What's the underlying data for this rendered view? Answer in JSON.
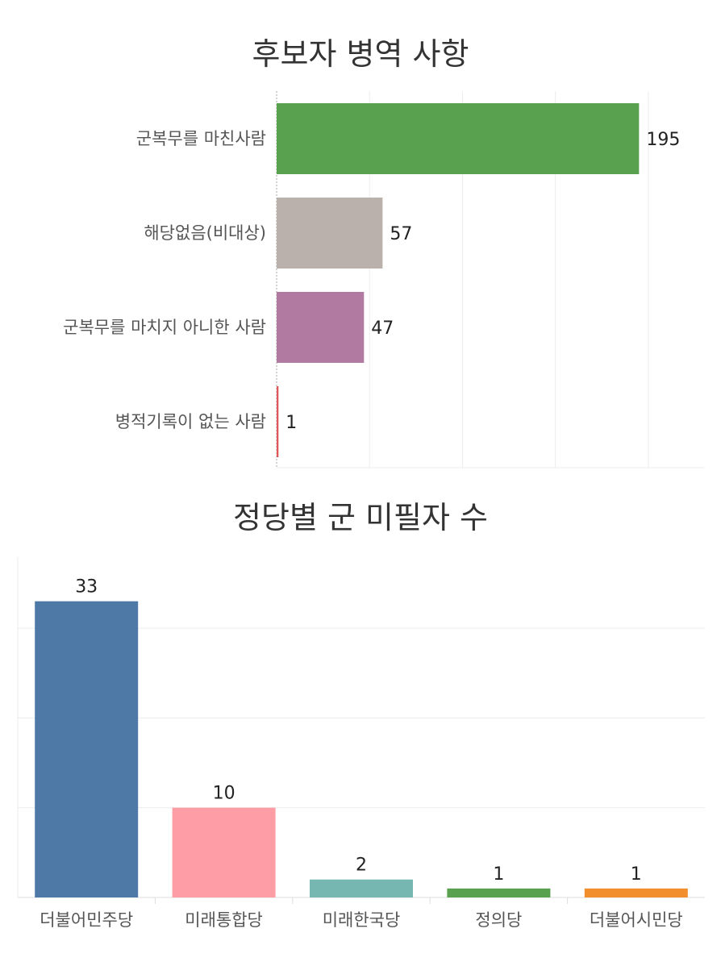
{
  "chart_data": [
    {
      "type": "bar",
      "orientation": "horizontal",
      "title": "후보자 병역 사항",
      "categories": [
        "군복무를 마친사람",
        "해당없음(비대상)",
        "군복무를 마치지 아니한 사람",
        "병적기록이 없는 사람"
      ],
      "values": [
        195,
        57,
        47,
        1
      ],
      "colors": [
        "#59a14f",
        "#bab0ac",
        "#b07aa1",
        "#e15759"
      ],
      "xlim": [
        0,
        230
      ],
      "grid": true,
      "legend": "none"
    },
    {
      "type": "bar",
      "orientation": "vertical",
      "title": "정당별 군 미필자 수",
      "categories": [
        "더불어민주당",
        "미래통합당",
        "미래한국당",
        "정의당",
        "더불어시민당"
      ],
      "values": [
        33,
        10,
        2,
        1,
        1
      ],
      "colors": [
        "#4e79a7",
        "#ff9da7",
        "#76b7b2",
        "#59a14f",
        "#f28e2b"
      ],
      "ylim": [
        0,
        38
      ],
      "grid": true,
      "legend": "none"
    }
  ]
}
